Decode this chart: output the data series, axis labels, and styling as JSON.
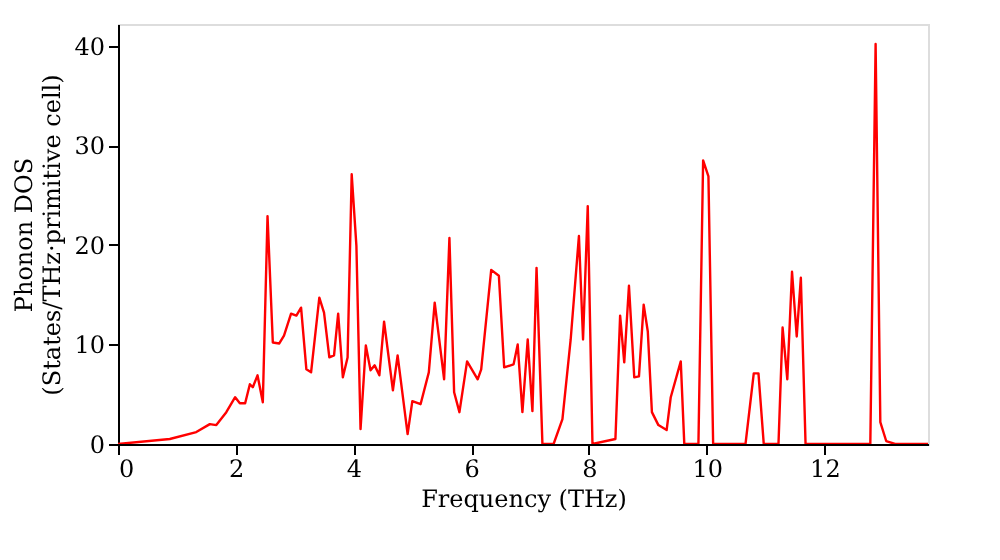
{
  "chart_data": {
    "type": "line",
    "xlabel": "Frequency (THz)",
    "ylabel": "Phonon DOS\n(States/THz·primitive cell)",
    "xlim": [
      0,
      13.76
    ],
    "ylim": [
      0,
      42.2
    ],
    "xticks": [
      0,
      2,
      4,
      6,
      8,
      10,
      12
    ],
    "yticks": [
      0,
      10,
      20,
      30,
      40
    ],
    "grid": false,
    "line_style": "solid",
    "marker": "none",
    "series": [
      {
        "color": "#ff0000",
        "x": [
          0,
          0.88,
          1.33,
          1.56,
          1.67,
          1.84,
          1.99,
          2.07,
          2.16,
          2.24,
          2.29,
          2.37,
          2.46,
          2.54,
          2.63,
          2.74,
          2.82,
          2.94,
          3.03,
          3.11,
          3.2,
          3.28,
          3.42,
          3.5,
          3.59,
          3.67,
          3.74,
          3.82,
          3.9,
          3.97,
          4.05,
          4.12,
          4.21,
          4.29,
          4.36,
          4.44,
          4.52,
          4.67,
          4.75,
          4.92,
          5.0,
          5.14,
          5.28,
          5.38,
          5.54,
          5.63,
          5.71,
          5.8,
          5.93,
          6.11,
          6.17,
          6.34,
          6.47,
          6.56,
          6.72,
          6.79,
          6.87,
          6.96,
          7.04,
          7.11,
          7.21,
          7.4,
          7.55,
          7.69,
          7.83,
          7.9,
          7.98,
          8.06,
          8.45,
          8.53,
          8.6,
          8.68,
          8.77,
          8.85,
          8.93,
          9.0,
          9.07,
          9.18,
          9.32,
          9.39,
          9.56,
          9.62,
          9.86,
          9.94,
          10.03,
          10.11,
          10.66,
          10.8,
          10.88,
          10.97,
          11.22,
          11.29,
          11.37,
          11.45,
          11.53,
          11.6,
          11.68,
          12.78,
          12.87,
          12.95,
          13.05,
          13.2,
          13.76
        ],
        "values": [
          0,
          0.5,
          1.2,
          2,
          1.9,
          3.2,
          4.7,
          4.1,
          4.1,
          6,
          5.7,
          6.9,
          4.2,
          22.9,
          10.2,
          10.1,
          10.9,
          13.1,
          12.9,
          13.7,
          7.5,
          7.2,
          14.7,
          13.2,
          8.7,
          8.9,
          13.1,
          6.7,
          8.7,
          27.1,
          19.9,
          1.5,
          9.9,
          7.4,
          7.9,
          6.9,
          12.3,
          5.4,
          8.9,
          1.0,
          4.3,
          4.0,
          7.2,
          14.2,
          6.5,
          20.7,
          5.2,
          3.2,
          8.3,
          6.5,
          7.5,
          17.5,
          16.9,
          7.7,
          8,
          10,
          3.2,
          10.5,
          3.3,
          17.7,
          0,
          0,
          2.5,
          10.5,
          20.9,
          10.5,
          23.9,
          0,
          0.5,
          12.9,
          8.2,
          15.9,
          6.7,
          6.8,
          14,
          11.3,
          3.2,
          1.9,
          1.4,
          4.7,
          8.3,
          0,
          0,
          28.5,
          26.9,
          0,
          0,
          7.1,
          7.1,
          0,
          0,
          11.7,
          6.5,
          17.3,
          10.8,
          16.7,
          0,
          0,
          40.2,
          2.2,
          0.3,
          0,
          0
        ]
      }
    ]
  }
}
